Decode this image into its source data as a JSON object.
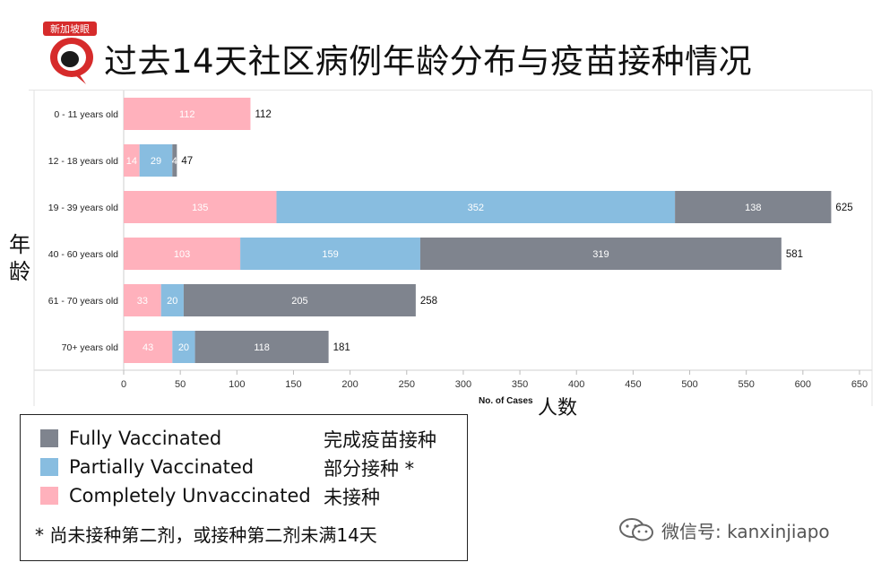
{
  "page": {
    "logo_text": "新加坡眼",
    "title": "过去14天社区病例年龄分布与疫苗接种情况",
    "yaxis_cn": "年龄",
    "xaxis_label": "No. of Cases",
    "xaxis_cn": "人数"
  },
  "legend": {
    "items": [
      {
        "label": "Fully Vaccinated",
        "cn": "完成疫苗接种",
        "color": "#7f848e"
      },
      {
        "label": "Partially Vaccinated",
        "cn": "部分接种 *",
        "color": "#88bde0"
      },
      {
        "label": "Completely Unvaccinated",
        "cn": "未接种",
        "color": "#ffb1bc"
      }
    ],
    "footnote": "* 尚未接种第二剂，或接种第二剂未满14天"
  },
  "watermark": {
    "text": "微信号: kanxinjiapo",
    "icon": "wechat-icon"
  },
  "chart_data": {
    "type": "bar",
    "orientation": "horizontal",
    "stacked": true,
    "title": "过去14天社区病例年龄分布与疫苗接种情况",
    "xlabel": "No. of Cases",
    "ylabel": "年龄",
    "xlim": [
      0,
      650
    ],
    "xticks": [
      0,
      50,
      100,
      150,
      200,
      250,
      300,
      350,
      400,
      450,
      500,
      550,
      600,
      650
    ],
    "categories": [
      "0 - 11 years old",
      "12 - 18 years old",
      "19 - 39 years old",
      "40 - 60 years old",
      "61 - 70 years old",
      "70+ years old"
    ],
    "series": [
      {
        "name": "Completely Unvaccinated",
        "color": "#ffb1bc",
        "values": [
          112,
          14,
          135,
          103,
          33,
          43
        ]
      },
      {
        "name": "Partially Vaccinated",
        "color": "#88bde0",
        "values": [
          0,
          29,
          352,
          159,
          20,
          20
        ]
      },
      {
        "name": "Fully Vaccinated",
        "color": "#7f848e",
        "values": [
          0,
          4,
          138,
          319,
          205,
          118
        ]
      }
    ],
    "totals": [
      112,
      47,
      625,
      581,
      258,
      181
    ]
  }
}
